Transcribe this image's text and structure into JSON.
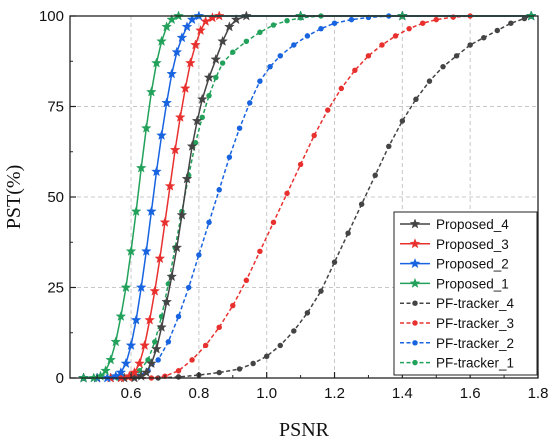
{
  "chart_data": {
    "type": "line",
    "title": "",
    "xlabel": "PSNR",
    "ylabel": "PST(%)",
    "xlim": [
      0.42,
      1.8
    ],
    "ylim": [
      0,
      100
    ],
    "xticks": [
      0.6,
      0.8,
      1.0,
      1.2,
      1.4,
      1.6,
      1.8
    ],
    "xtick_labels": [
      "0.6",
      "0.8",
      "1.0",
      "1.2",
      "1.4",
      "1.6",
      "1.8"
    ],
    "yticks": [
      0,
      25,
      50,
      75,
      100
    ],
    "ytick_labels": [
      "0",
      "25",
      "50",
      "75",
      "100"
    ],
    "grid": true,
    "legend_position": "bottom-right",
    "series": [
      {
        "name": "Proposed_4",
        "color": "#444444",
        "line_style": "solid",
        "marker": "star",
        "points": [
          [
            0.46,
            0
          ],
          [
            0.5,
            0
          ],
          [
            0.54,
            0
          ],
          [
            0.58,
            0
          ],
          [
            0.61,
            0
          ],
          [
            0.63,
            0.5
          ],
          [
            0.645,
            1.5
          ],
          [
            0.66,
            4
          ],
          [
            0.675,
            8
          ],
          [
            0.69,
            14
          ],
          [
            0.705,
            21
          ],
          [
            0.72,
            28
          ],
          [
            0.735,
            36
          ],
          [
            0.75,
            45
          ],
          [
            0.765,
            55
          ],
          [
            0.78,
            64
          ],
          [
            0.795,
            71
          ],
          [
            0.81,
            77
          ],
          [
            0.83,
            83
          ],
          [
            0.85,
            88
          ],
          [
            0.87,
            93
          ],
          [
            0.89,
            97
          ],
          [
            0.91,
            99
          ],
          [
            0.94,
            100
          ],
          [
            1.1,
            100
          ],
          [
            1.4,
            100
          ],
          [
            1.78,
            100
          ]
        ]
      },
      {
        "name": "Proposed_3",
        "color": "#e8312f",
        "line_style": "solid",
        "marker": "star",
        "points": [
          [
            0.46,
            0
          ],
          [
            0.5,
            0
          ],
          [
            0.54,
            0
          ],
          [
            0.57,
            0
          ],
          [
            0.595,
            0.5
          ],
          [
            0.61,
            1.5
          ],
          [
            0.625,
            4
          ],
          [
            0.64,
            9
          ],
          [
            0.655,
            16
          ],
          [
            0.67,
            24
          ],
          [
            0.685,
            33
          ],
          [
            0.7,
            43
          ],
          [
            0.715,
            53
          ],
          [
            0.73,
            63
          ],
          [
            0.745,
            72
          ],
          [
            0.76,
            80
          ],
          [
            0.775,
            87
          ],
          [
            0.79,
            92
          ],
          [
            0.805,
            96
          ],
          [
            0.82,
            98.5
          ],
          [
            0.84,
            99.5
          ],
          [
            0.86,
            100
          ],
          [
            1.1,
            100
          ],
          [
            1.4,
            100
          ],
          [
            1.78,
            100
          ]
        ]
      },
      {
        "name": "Proposed_2",
        "color": "#1763e0",
        "line_style": "solid",
        "marker": "star",
        "points": [
          [
            0.46,
            0
          ],
          [
            0.5,
            0
          ],
          [
            0.53,
            0
          ],
          [
            0.555,
            0.5
          ],
          [
            0.57,
            1.5
          ],
          [
            0.585,
            4
          ],
          [
            0.6,
            9
          ],
          [
            0.615,
            16
          ],
          [
            0.63,
            25
          ],
          [
            0.645,
            35
          ],
          [
            0.66,
            46
          ],
          [
            0.675,
            57
          ],
          [
            0.69,
            67
          ],
          [
            0.705,
            76
          ],
          [
            0.72,
            84
          ],
          [
            0.735,
            90
          ],
          [
            0.75,
            94
          ],
          [
            0.765,
            97
          ],
          [
            0.78,
            99
          ],
          [
            0.8,
            100
          ],
          [
            1.1,
            100
          ],
          [
            1.4,
            100
          ],
          [
            1.78,
            100
          ]
        ]
      },
      {
        "name": "Proposed_1",
        "color": "#22a15a",
        "line_style": "solid",
        "marker": "star",
        "points": [
          [
            0.46,
            0
          ],
          [
            0.49,
            0
          ],
          [
            0.51,
            0.5
          ],
          [
            0.525,
            2
          ],
          [
            0.54,
            5
          ],
          [
            0.555,
            10
          ],
          [
            0.57,
            17
          ],
          [
            0.585,
            25
          ],
          [
            0.6,
            35
          ],
          [
            0.615,
            46
          ],
          [
            0.63,
            58
          ],
          [
            0.645,
            69
          ],
          [
            0.66,
            79
          ],
          [
            0.675,
            87
          ],
          [
            0.69,
            93
          ],
          [
            0.705,
            97
          ],
          [
            0.72,
            99
          ],
          [
            0.74,
            100
          ],
          [
            1.1,
            100
          ],
          [
            1.4,
            100
          ],
          [
            1.78,
            100
          ]
        ]
      },
      {
        "name": "PF-tracker_4",
        "color": "#444444",
        "line_style": "dashed",
        "marker": "circle",
        "points": [
          [
            0.46,
            0
          ],
          [
            0.6,
            0
          ],
          [
            0.68,
            0
          ],
          [
            0.74,
            0.3
          ],
          [
            0.8,
            0.8
          ],
          [
            0.86,
            1.5
          ],
          [
            0.92,
            2.5
          ],
          [
            0.96,
            4
          ],
          [
            1.0,
            6
          ],
          [
            1.04,
            9
          ],
          [
            1.08,
            13
          ],
          [
            1.12,
            18
          ],
          [
            1.16,
            24
          ],
          [
            1.2,
            32
          ],
          [
            1.24,
            40
          ],
          [
            1.28,
            48
          ],
          [
            1.32,
            56
          ],
          [
            1.36,
            64
          ],
          [
            1.4,
            71
          ],
          [
            1.44,
            77
          ],
          [
            1.48,
            82
          ],
          [
            1.52,
            86
          ],
          [
            1.56,
            89
          ],
          [
            1.6,
            92
          ],
          [
            1.64,
            94
          ],
          [
            1.68,
            96
          ],
          [
            1.72,
            98
          ],
          [
            1.76,
            99.3
          ],
          [
            1.78,
            100
          ]
        ]
      },
      {
        "name": "PF-tracker_3",
        "color": "#e8312f",
        "line_style": "dashed",
        "marker": "circle",
        "points": [
          [
            0.46,
            0
          ],
          [
            0.6,
            0
          ],
          [
            0.66,
            0
          ],
          [
            0.7,
            0.5
          ],
          [
            0.74,
            2
          ],
          [
            0.78,
            5
          ],
          [
            0.82,
            9
          ],
          [
            0.86,
            14
          ],
          [
            0.9,
            20
          ],
          [
            0.94,
            27
          ],
          [
            0.98,
            35
          ],
          [
            1.02,
            43
          ],
          [
            1.06,
            51
          ],
          [
            1.1,
            59
          ],
          [
            1.14,
            67
          ],
          [
            1.18,
            74
          ],
          [
            1.22,
            80
          ],
          [
            1.26,
            85
          ],
          [
            1.3,
            89
          ],
          [
            1.34,
            92
          ],
          [
            1.38,
            94.5
          ],
          [
            1.42,
            96.5
          ],
          [
            1.46,
            98
          ],
          [
            1.5,
            99
          ],
          [
            1.55,
            99.7
          ],
          [
            1.6,
            100
          ],
          [
            1.78,
            100
          ]
        ]
      },
      {
        "name": "PF-tracker_2",
        "color": "#1763e0",
        "line_style": "dashed",
        "marker": "circle",
        "points": [
          [
            0.46,
            0
          ],
          [
            0.58,
            0
          ],
          [
            0.62,
            0.5
          ],
          [
            0.65,
            2
          ],
          [
            0.68,
            5
          ],
          [
            0.71,
            10
          ],
          [
            0.74,
            17
          ],
          [
            0.77,
            25
          ],
          [
            0.8,
            34
          ],
          [
            0.83,
            43
          ],
          [
            0.86,
            52
          ],
          [
            0.89,
            61
          ],
          [
            0.92,
            69
          ],
          [
            0.95,
            76
          ],
          [
            0.98,
            82
          ],
          [
            1.01,
            86
          ],
          [
            1.04,
            89
          ],
          [
            1.08,
            92
          ],
          [
            1.12,
            94.5
          ],
          [
            1.16,
            96.5
          ],
          [
            1.2,
            98
          ],
          [
            1.25,
            99
          ],
          [
            1.3,
            99.6
          ],
          [
            1.36,
            100
          ],
          [
            1.78,
            100
          ]
        ]
      },
      {
        "name": "PF-tracker_1",
        "color": "#22a15a",
        "line_style": "dashed",
        "marker": "circle",
        "points": [
          [
            0.46,
            0
          ],
          [
            0.56,
            0
          ],
          [
            0.6,
            0.5
          ],
          [
            0.625,
            2
          ],
          [
            0.65,
            5
          ],
          [
            0.67,
            10
          ],
          [
            0.69,
            17
          ],
          [
            0.71,
            26
          ],
          [
            0.73,
            36
          ],
          [
            0.75,
            46
          ],
          [
            0.77,
            56
          ],
          [
            0.79,
            65
          ],
          [
            0.81,
            72
          ],
          [
            0.83,
            78
          ],
          [
            0.85,
            83
          ],
          [
            0.87,
            87
          ],
          [
            0.9,
            90
          ],
          [
            0.94,
            93
          ],
          [
            0.98,
            95.5
          ],
          [
            1.02,
            97.5
          ],
          [
            1.06,
            98.7
          ],
          [
            1.1,
            99.5
          ],
          [
            1.16,
            100
          ],
          [
            1.78,
            100
          ]
        ]
      }
    ]
  }
}
